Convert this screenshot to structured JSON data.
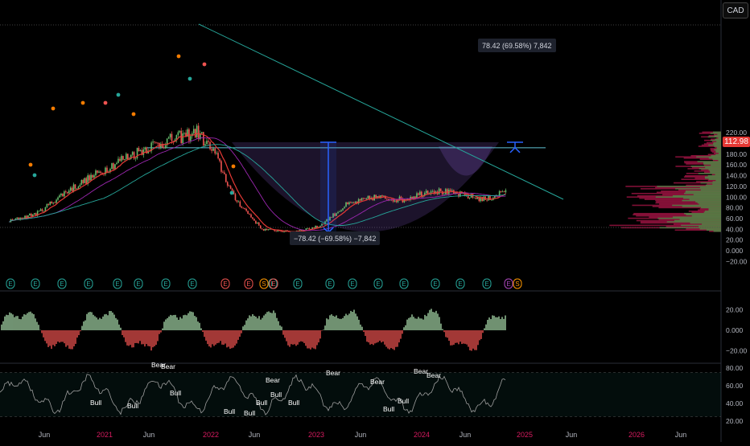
{
  "currency": "CAD",
  "last_price": "112.98",
  "upper_measure": "78.42 (69.58%) 7,842",
  "lower_measure": "−78.42 (−69.58%) −7,842",
  "colors": {
    "up": "#66bb6a",
    "down": "#ef5350",
    "trend": "#26a69a",
    "measure": "#2962ff",
    "ma_fast": "#e53935",
    "ma_slow": "#26a69a",
    "ma_mid": "#9c27b0"
  },
  "chart_data": [
    {
      "type": "line",
      "title": "",
      "ylim": [
        -25,
        225
      ],
      "y_ticks": [
        "220.00",
        "200.00",
        "180.00",
        "160.00",
        "140.00",
        "120.00",
        "100.00",
        "80.00",
        "60.00",
        "40.00",
        "20.00",
        "0.000",
        "−20.00"
      ],
      "x_ticks": [
        "Jun",
        "2021",
        "Jun",
        "2022",
        "Jun",
        "2023",
        "Jun",
        "2024",
        "Jun",
        "2025",
        "Jun",
        "2026",
        "Jun"
      ],
      "x": [
        "2020-05",
        "2020-08",
        "2020-11",
        "2021-02",
        "2021-05",
        "2021-08",
        "2021-11",
        "2022-01",
        "2022-03",
        "2022-05",
        "2022-08",
        "2022-11",
        "2023-02",
        "2023-05",
        "2023-08",
        "2023-11",
        "2024-02",
        "2024-05",
        "2024-08",
        "2024-10"
      ],
      "series": [
        {
          "values": [
            55,
            70,
            110,
            140,
            170,
            195,
            210,
            222,
            180,
            100,
            40,
            35,
            45,
            85,
            100,
            95,
            113,
            105,
            95,
            113
          ]
        }
      ],
      "annotations": {
        "resistance_level": 192,
        "support_level": 34,
        "measured_move": 78.42
      },
      "earnings_markers": [
        "E",
        "E",
        "E",
        "E",
        "E",
        "E",
        "E",
        "E",
        "E",
        "E",
        "S",
        "E",
        "E",
        "E",
        "E",
        "E",
        "E",
        "E",
        "E",
        "E",
        "E",
        "E",
        "S",
        "E"
      ]
    },
    {
      "type": "bar",
      "title": "",
      "ylim": [
        -30,
        30
      ],
      "y_ticks": [
        "20.00",
        "0.000",
        "−20.00"
      ]
    },
    {
      "type": "line",
      "title": "",
      "ylim": [
        18,
        85
      ],
      "y_ticks": [
        "80.00",
        "60.00",
        "40.00",
        "20.00"
      ],
      "signals": [
        "Bear",
        "Bear",
        "Bull",
        "Bull",
        "Bull",
        "Bear",
        "Bull",
        "Bull",
        "Bull",
        "Bull",
        "Bear",
        "Bear",
        "Bull",
        "Bull",
        "Bull",
        "Bear",
        "Bear"
      ]
    }
  ]
}
